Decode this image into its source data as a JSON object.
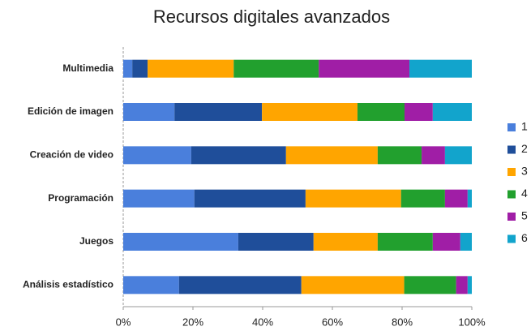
{
  "chart_data": {
    "type": "stacked-barh",
    "title": "Recursos digitales avanzados",
    "categories": [
      "Multimedia",
      "Edición de imagen",
      "Creación de video",
      "Programación",
      "Juegos",
      "Análisis estadístico"
    ],
    "series": [
      {
        "name": "1",
        "color": "#4a7fdc",
        "values": [
          2.6,
          14.7,
          19.5,
          20.4,
          33,
          16
        ]
      },
      {
        "name": "2",
        "color": "#1f4e9a",
        "values": [
          4.4,
          25.1,
          27.2,
          31.9,
          21.6,
          35.1
        ]
      },
      {
        "name": "3",
        "color": "#ffa500",
        "values": [
          24.7,
          27.4,
          26.3,
          27.4,
          18.4,
          29.5
        ]
      },
      {
        "name": "4",
        "color": "#22a02e",
        "values": [
          24.4,
          13.5,
          12.6,
          12.6,
          15.8,
          14.9
        ]
      },
      {
        "name": "5",
        "color": "#a01ea6",
        "values": [
          26,
          8.1,
          6.7,
          6.5,
          7.9,
          3.3
        ]
      },
      {
        "name": "6",
        "color": "#12a4cc",
        "values": [
          17.9,
          11.2,
          7.7,
          1.2,
          3.3,
          1.2
        ]
      }
    ],
    "xlim": [
      0,
      100
    ],
    "xticks": [
      {
        "value": 0,
        "label": "0%"
      },
      {
        "value": 20,
        "label": "20%"
      },
      {
        "value": 40,
        "label": "40%"
      },
      {
        "value": 60,
        "label": "60%"
      },
      {
        "value": 80,
        "label": "80%"
      },
      {
        "value": 100,
        "label": "100%"
      }
    ],
    "legend": "right"
  }
}
